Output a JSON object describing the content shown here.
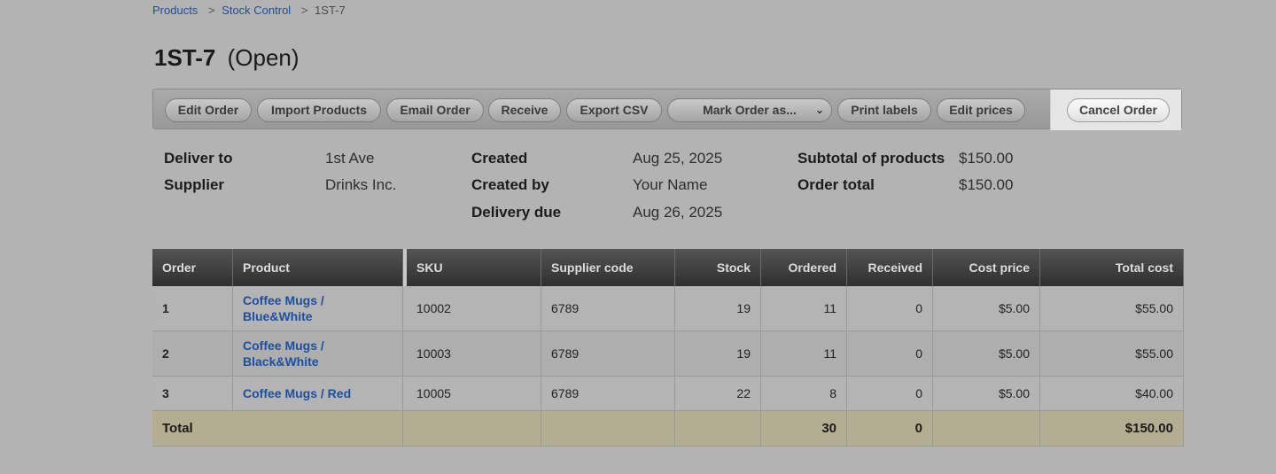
{
  "breadcrumb": {
    "items": [
      "Products",
      "Stock Control"
    ],
    "current": "1ST-7",
    "separator": ">"
  },
  "page": {
    "code": "1ST-7",
    "status": "(Open)"
  },
  "toolbar": {
    "edit_order": "Edit Order",
    "import_products": "Import Products",
    "email_order": "Email Order",
    "receive": "Receive",
    "export_csv": "Export CSV",
    "mark_order_as": "Mark Order as...",
    "print_labels": "Print labels",
    "edit_prices": "Edit prices",
    "cancel_order": "Cancel Order"
  },
  "info": {
    "deliver_to_label": "Deliver to",
    "deliver_to": "1st Ave",
    "supplier_label": "Supplier",
    "supplier": "Drinks Inc.",
    "created_label": "Created",
    "created": "Aug 25, 2025",
    "created_by_label": "Created by",
    "created_by": "Your Name",
    "delivery_due_label": "Delivery due",
    "delivery_due": "Aug 26, 2025",
    "subtotal_label": "Subtotal of products",
    "subtotal": "$150.00",
    "order_total_label": "Order total",
    "order_total": "$150.00"
  },
  "table": {
    "headers": {
      "order": "Order",
      "product": "Product",
      "sku": "SKU",
      "supplier_code": "Supplier code",
      "stock": "Stock",
      "ordered": "Ordered",
      "received": "Received",
      "cost_price": "Cost price",
      "total_cost": "Total cost"
    },
    "rows": [
      {
        "order": "1",
        "product_line1": "Coffee Mugs /",
        "product_line2": "Blue&White",
        "sku": "10002",
        "supplier_code": "6789",
        "stock": "19",
        "ordered": "11",
        "received": "0",
        "cost_price": "$5.00",
        "total_cost": "$55.00"
      },
      {
        "order": "2",
        "product_line1": "Coffee Mugs /",
        "product_line2": "Black&White",
        "sku": "10003",
        "supplier_code": "6789",
        "stock": "19",
        "ordered": "11",
        "received": "0",
        "cost_price": "$5.00",
        "total_cost": "$55.00"
      },
      {
        "order": "3",
        "product_line1": "Coffee Mugs / Red",
        "product_line2": "",
        "sku": "10005",
        "supplier_code": "6789",
        "stock": "22",
        "ordered": "8",
        "received": "0",
        "cost_price": "$5.00",
        "total_cost": "$40.00"
      }
    ],
    "total": {
      "label": "Total",
      "ordered": "30",
      "received": "0",
      "total_cost": "$150.00"
    }
  }
}
